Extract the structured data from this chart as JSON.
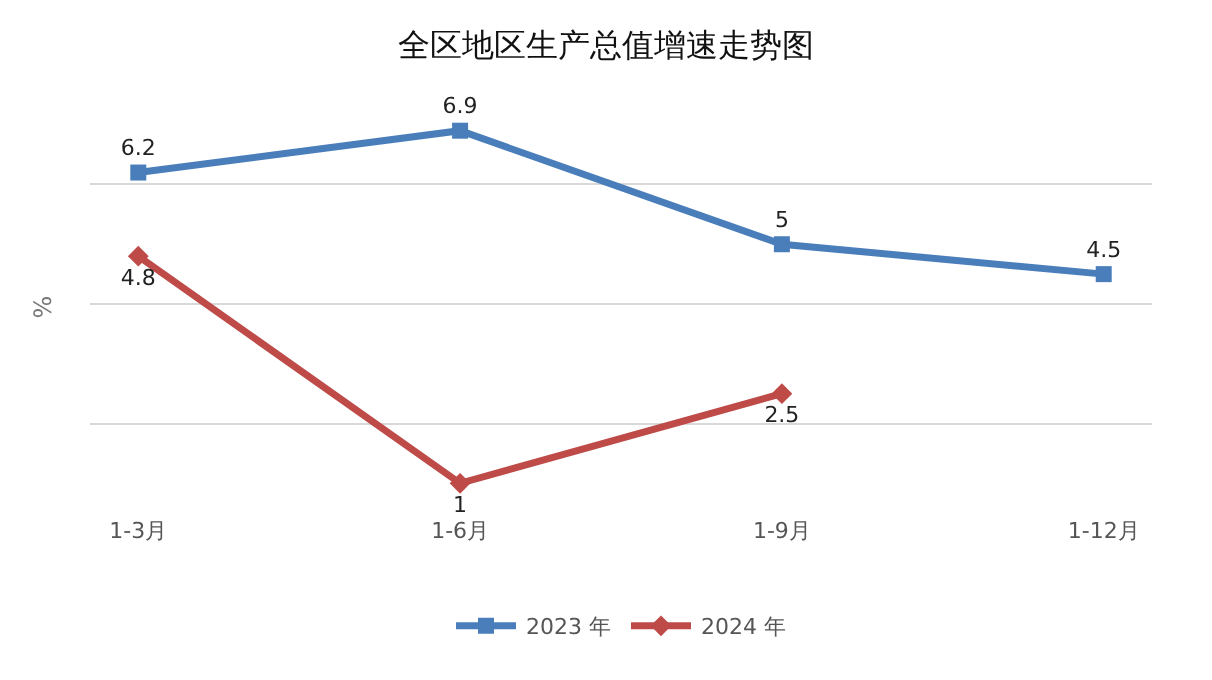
{
  "chart_data": {
    "type": "line",
    "title": "全区地区生产总值增速走势图",
    "ylabel": "%",
    "categories": [
      "1-3月",
      "1-6月",
      "1-9月",
      "1-12月"
    ],
    "series": [
      {
        "name": "2023 年",
        "color": "#4a7ebb",
        "values": [
          6.2,
          6.9,
          5,
          4.5
        ],
        "marker": "square"
      },
      {
        "name": "2024 年",
        "color": "#be4b48",
        "values": [
          4.8,
          1,
          2.5,
          null
        ],
        "marker": "diamond"
      }
    ],
    "tick_labels": "x",
    "grid": "y",
    "legend": "bottom",
    "data_labels": true,
    "line_style": "solid"
  }
}
